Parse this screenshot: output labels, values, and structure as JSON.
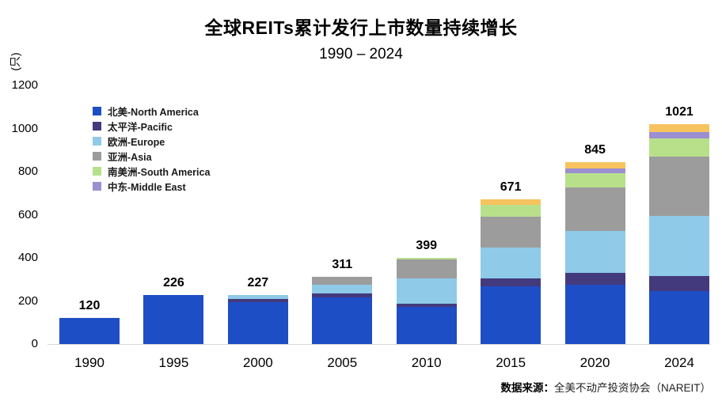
{
  "title": "全球REITs累计发行上市数量持续增长",
  "subtitle": "1990 – 2024",
  "y_axis_unit": "(只)",
  "source": {
    "prefix": "数据来源：",
    "text": "全美不动产投资协会（NAREIT）"
  },
  "chart_data": {
    "type": "bar",
    "stacked": true,
    "categories": [
      "1990",
      "1995",
      "2000",
      "2005",
      "2010",
      "2015",
      "2020",
      "2024"
    ],
    "totals": [
      120,
      226,
      227,
      311,
      399,
      671,
      845,
      1021
    ],
    "series": [
      {
        "name": "北美-North America",
        "color": "#1E4EC5",
        "in_legend": true,
        "values": [
          120,
          226,
          193,
          215,
          171,
          269,
          275,
          245
        ]
      },
      {
        "name": "太平洋-Pacific",
        "color": "#433A7D",
        "in_legend": true,
        "values": [
          0,
          0,
          16,
          21,
          18,
          37,
          55,
          70
        ]
      },
      {
        "name": "欧洲-Europe",
        "color": "#8FCAE8",
        "in_legend": true,
        "values": [
          0,
          0,
          18,
          38,
          116,
          141,
          196,
          279
        ]
      },
      {
        "name": "亚洲-Asia",
        "color": "#9C9C9C",
        "in_legend": true,
        "values": [
          0,
          0,
          0,
          37,
          89,
          143,
          202,
          275
        ]
      },
      {
        "name": "南美洲-South America",
        "color": "#B8E08B",
        "in_legend": true,
        "values": [
          0,
          0,
          0,
          0,
          5,
          55,
          64,
          86
        ]
      },
      {
        "name": "中东-Middle East",
        "color": "#9B8FD1",
        "in_legend": true,
        "values": [
          0,
          0,
          0,
          0,
          0,
          0,
          22,
          30
        ]
      },
      {
        "name": "",
        "color": "#F7C35F",
        "in_legend": false,
        "values": [
          0,
          0,
          0,
          0,
          0,
          26,
          31,
          36
        ]
      }
    ],
    "ylim": [
      0,
      1200
    ],
    "yticks": [
      0,
      200,
      400,
      600,
      800,
      1000,
      1200
    ],
    "grid": false,
    "legend_position": "upper-left-inside"
  }
}
